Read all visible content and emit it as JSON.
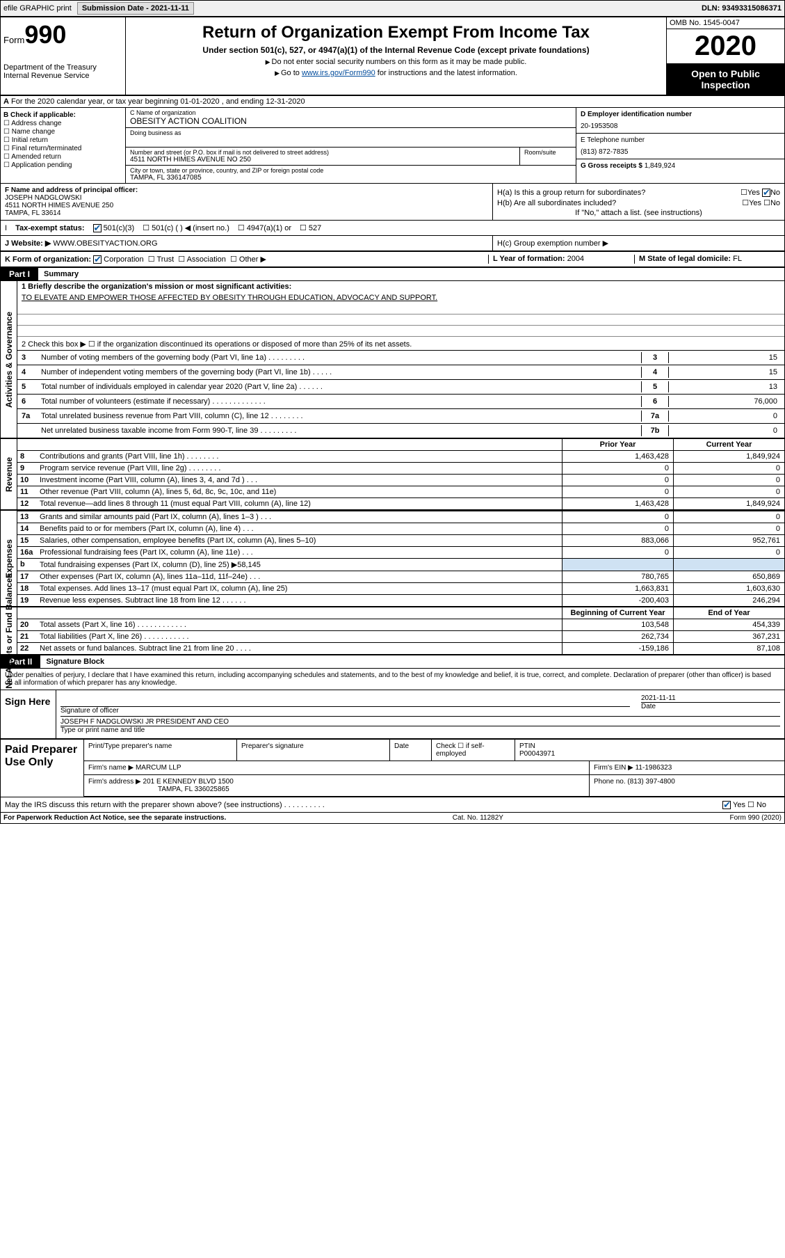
{
  "topbar": {
    "efile": "efile GRAPHIC print",
    "submission": "Submission Date - 2021-11-11",
    "dln": "DLN: 93493315086371"
  },
  "header": {
    "form_prefix": "Form",
    "form_number": "990",
    "dept": "Department of the Treasury\nInternal Revenue Service",
    "title": "Return of Organization Exempt From Income Tax",
    "subtitle": "Under section 501(c), 527, or 4947(a)(1) of the Internal Revenue Code (except private foundations)",
    "note1": "Do not enter social security numbers on this form as it may be made public.",
    "note2_prefix": "Go to ",
    "note2_link": "www.irs.gov/Form990",
    "note2_suffix": " for instructions and the latest information.",
    "omb": "OMB No. 1545-0047",
    "year": "2020",
    "open": "Open to Public Inspection"
  },
  "row_a": "For the 2020 calendar year, or tax year beginning 01-01-2020     , and ending 12-31-2020",
  "section_b": {
    "label": "B Check if applicable:",
    "items": [
      "Address change",
      "Name change",
      "Initial return",
      "Final return/terminated",
      "Amended return",
      "Application pending"
    ]
  },
  "section_c": {
    "name_lbl": "C Name of organization",
    "name_val": "OBESITY ACTION COALITION",
    "dba_lbl": "Doing business as",
    "addr_lbl": "Number and street (or P.O. box if mail is not delivered to street address)",
    "addr_val": "4511 NORTH HIMES AVENUE NO 250",
    "room_lbl": "Room/suite",
    "city_lbl": "City or town, state or province, country, and ZIP or foreign postal code",
    "city_val": "TAMPA, FL  336147085"
  },
  "section_de": {
    "d_lbl": "D Employer identification number",
    "d_val": "20-1953508",
    "e_lbl": "E Telephone number",
    "e_val": "(813) 872-7835",
    "g_lbl": "G Gross receipts $ ",
    "g_val": "1,849,924"
  },
  "section_f": {
    "lbl": "F Name and address of principal officer:",
    "name": "JOSEPH NADGLOWSKI",
    "addr1": "4511 NORTH HIMES AVENUE 250",
    "addr2": "TAMPA, FL  33614"
  },
  "section_h": {
    "ha": "H(a)  Is this a group return for subordinates?",
    "hb": "H(b)  Are all subordinates included?",
    "hb_note": "If \"No,\" attach a list. (see instructions)",
    "hc": "H(c)  Group exemption number ▶",
    "yes": "Yes",
    "no": "No"
  },
  "tax_status": {
    "lbl": "Tax-exempt status:",
    "o1": "501(c)(3)",
    "o2": "501(c) (   ) ◀ (insert no.)",
    "o3": "4947(a)(1) or",
    "o4": "527"
  },
  "website": {
    "lbl": "J   Website: ▶",
    "val": "WWW.OBESITYACTION.ORG"
  },
  "k_row": {
    "k_lbl": "K Form of organization:",
    "k_opts": [
      "Corporation",
      "Trust",
      "Association",
      "Other ▶"
    ],
    "l_lbl": "L Year of formation:",
    "l_val": "2004",
    "m_lbl": "M State of legal domicile:",
    "m_val": "FL"
  },
  "part1": {
    "hdr": "Part I",
    "title": "Summary"
  },
  "gov": {
    "q1_lbl": "1   Briefly describe the organization's mission or most significant activities:",
    "q1_val": "TO ELEVATE AND EMPOWER THOSE AFFECTED BY OBESITY THROUGH EDUCATION, ADVOCACY AND SUPPORT.",
    "q2": "2   Check this box ▶ ☐ if the organization discontinued its operations or disposed of more than 25% of its net assets.",
    "rows": [
      {
        "n": "3",
        "t": "Number of voting members of the governing body (Part VI, line 1a)   .   .   .   .   .   .   .   .   .",
        "b": "3",
        "v": "15"
      },
      {
        "n": "4",
        "t": "Number of independent voting members of the governing body (Part VI, line 1b)   .   .   .   .   .",
        "b": "4",
        "v": "15"
      },
      {
        "n": "5",
        "t": "Total number of individuals employed in calendar year 2020 (Part V, line 2a)   .   .   .   .   .   .",
        "b": "5",
        "v": "13"
      },
      {
        "n": "6",
        "t": "Total number of volunteers (estimate if necessary)   .   .   .   .   .   .   .   .   .   .   .   .   .",
        "b": "6",
        "v": "76,000"
      },
      {
        "n": "7a",
        "t": "Total unrelated business revenue from Part VIII, column (C), line 12   .   .   .   .   .   .   .   .",
        "b": "7a",
        "v": "0"
      },
      {
        "n": "",
        "t": "Net unrelated business taxable income from Form 990-T, line 39   .   .   .   .   .   .   .   .   .",
        "b": "7b",
        "v": "0"
      }
    ]
  },
  "two_col_hdr": {
    "prior": "Prior Year",
    "current": "Current Year"
  },
  "revenue": {
    "label": "Revenue",
    "rows": [
      {
        "n": "8",
        "t": "Contributions and grants (Part VIII, line 1h)   .   .   .   .   .   .   .   .",
        "p": "1,463,428",
        "c": "1,849,924"
      },
      {
        "n": "9",
        "t": "Program service revenue (Part VIII, line 2g)   .   .   .   .   .   .   .   .",
        "p": "0",
        "c": "0"
      },
      {
        "n": "10",
        "t": "Investment income (Part VIII, column (A), lines 3, 4, and 7d )   .   .   .",
        "p": "0",
        "c": "0"
      },
      {
        "n": "11",
        "t": "Other revenue (Part VIII, column (A), lines 5, 6d, 8c, 9c, 10c, and 11e)",
        "p": "0",
        "c": "0"
      },
      {
        "n": "12",
        "t": "Total revenue—add lines 8 through 11 (must equal Part VIII, column (A), line 12)",
        "p": "1,463,428",
        "c": "1,849,924"
      }
    ]
  },
  "expenses": {
    "label": "Expenses",
    "rows": [
      {
        "n": "13",
        "t": "Grants and similar amounts paid (Part IX, column (A), lines 1–3 )   .   .   .",
        "p": "0",
        "c": "0"
      },
      {
        "n": "14",
        "t": "Benefits paid to or for members (Part IX, column (A), line 4)   .   .   .",
        "p": "0",
        "c": "0"
      },
      {
        "n": "15",
        "t": "Salaries, other compensation, employee benefits (Part IX, column (A), lines 5–10)",
        "p": "883,066",
        "c": "952,761"
      },
      {
        "n": "16a",
        "t": "Professional fundraising fees (Part IX, column (A), line 11e)   .   .   .",
        "p": "0",
        "c": "0"
      },
      {
        "n": "b",
        "t": "Total fundraising expenses (Part IX, column (D), line 25) ▶58,145",
        "p": "",
        "c": "",
        "shade": true
      },
      {
        "n": "17",
        "t": "Other expenses (Part IX, column (A), lines 11a–11d, 11f–24e)   .   .   .",
        "p": "780,765",
        "c": "650,869"
      },
      {
        "n": "18",
        "t": "Total expenses. Add lines 13–17 (must equal Part IX, column (A), line 25)",
        "p": "1,663,831",
        "c": "1,603,630"
      },
      {
        "n": "19",
        "t": "Revenue less expenses. Subtract line 18 from line 12   .   .   .   .   .   .",
        "p": "-200,403",
        "c": "246,294"
      }
    ]
  },
  "netassets_hdr": {
    "beg": "Beginning of Current Year",
    "end": "End of Year"
  },
  "netassets": {
    "label": "Net Assets or Fund Balances",
    "rows": [
      {
        "n": "20",
        "t": "Total assets (Part X, line 16)   .   .   .   .   .   .   .   .   .   .   .   .",
        "p": "103,548",
        "c": "454,339"
      },
      {
        "n": "21",
        "t": "Total liabilities (Part X, line 26)   .   .   .   .   .   .   .   .   .   .   .",
        "p": "262,734",
        "c": "367,231"
      },
      {
        "n": "22",
        "t": "Net assets or fund balances. Subtract line 21 from line 20   .   .   .   .",
        "p": "-159,186",
        "c": "87,108"
      }
    ]
  },
  "part2": {
    "hdr": "Part II",
    "title": "Signature Block"
  },
  "sig_decl": "Under penalties of perjury, I declare that I have examined this return, including accompanying schedules and statements, and to the best of my knowledge and belief, it is true, correct, and complete. Declaration of preparer (other than officer) is based on all information of which preparer has any knowledge.",
  "sign_here": {
    "lbl": "Sign Here",
    "sig_lbl": "Signature of officer",
    "date_lbl": "Date",
    "date_val": "2021-11-11",
    "name": "JOSEPH F NADGLOWSKI JR  PRESIDENT AND CEO",
    "name_lbl": "Type or print name and title"
  },
  "preparer": {
    "lbl": "Paid Preparer Use Only",
    "pt_lbl": "Print/Type preparer's name",
    "sig_lbl": "Preparer's signature",
    "date_lbl": "Date",
    "check_lbl": "Check ☐ if self-employed",
    "ptin_lbl": "PTIN",
    "ptin_val": "P00043971",
    "firm_lbl": "Firm's name    ▶",
    "firm_val": "MARCUM LLP",
    "ein_lbl": "Firm's EIN ▶",
    "ein_val": "11-1986323",
    "addr_lbl": "Firm's address ▶",
    "addr_val1": "201 E KENNEDY BLVD 1500",
    "addr_val2": "TAMPA, FL  336025865",
    "phone_lbl": "Phone no.",
    "phone_val": "(813) 397-4800"
  },
  "irs_discuss": "May the IRS discuss this return with the preparer shown above? (see instructions)   .   .   .   .   .   .   .   .   .   .",
  "footer": {
    "pra": "For Paperwork Reduction Act Notice, see the separate instructions.",
    "cat": "Cat. No. 11282Y",
    "form": "Form 990 (2020)"
  },
  "labels": {
    "yes": "Yes",
    "no": "No"
  }
}
